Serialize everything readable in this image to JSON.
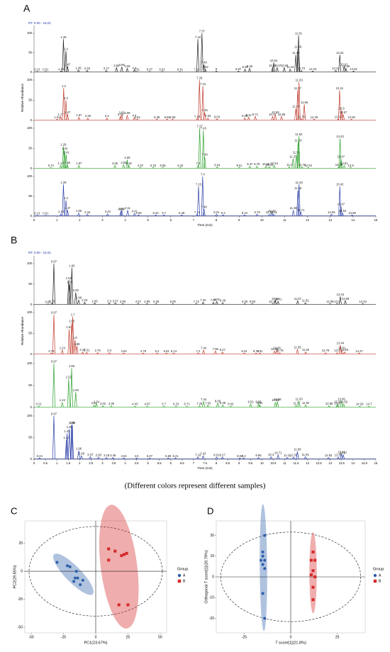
{
  "chart_data": [
    {
      "type": "chromatogram",
      "panel": "A",
      "rt_label": "RT: 0.00 - 15.01",
      "ylabel": "Relative Abundance",
      "xlabel": "Time (min)",
      "xlim": [
        0,
        15
      ],
      "xticks": [
        0,
        1,
        2,
        3,
        4,
        5,
        6,
        7,
        8,
        9,
        10,
        11,
        12,
        13,
        14,
        15
      ],
      "ylim": [
        0,
        100
      ],
      "yticks": [
        0,
        50,
        100
      ],
      "series": [
        {
          "color": "#222222",
          "x": [
            0.13,
            0.51,
            1.18,
            1.29,
            1.4,
            1.47,
            1.95,
            2.33,
            3.17,
            3.62,
            3.85,
            4.09,
            4.4,
            4.51,
            5.07,
            5.62,
            6.41,
            7.14,
            7.19,
            7.37,
            7.46,
            7.52,
            8.0,
            8.97,
            9.26,
            9.46,
            10.47,
            10.52,
            10.67,
            10.98,
            11.24,
            11.49,
            11.58,
            11.61,
            11.73,
            12.23,
            13.24,
            13.42,
            13.61,
            13.69,
            14.02
          ],
          "values": [
            2,
            2,
            3,
            85,
            55,
            15,
            6,
            5,
            5,
            12,
            14,
            10,
            6,
            2,
            2,
            2,
            2,
            2,
            85,
            100,
            20,
            8,
            3,
            3,
            8,
            10,
            12,
            25,
            12,
            12,
            8,
            45,
            60,
            95,
            5,
            3,
            5,
            45,
            15,
            10,
            3
          ]
        },
        {
          "color": "#c0392b",
          "x": [
            1.01,
            1.17,
            1.3,
            1.4,
            1.47,
            1.97,
            2.36,
            3.2,
            3.79,
            3.85,
            4.09,
            4.4,
            4.53,
            5.39,
            5.84,
            6.08,
            7.16,
            7.26,
            7.41,
            7.49,
            7.63,
            8.03,
            9.25,
            9.42,
            9.71,
            10.47,
            10.59,
            10.86,
            11.49,
            11.57,
            11.63,
            11.73,
            11.86,
            12.29,
            13.35,
            13.41,
            13.5,
            13.57,
            13.93
          ],
          "values": [
            3,
            10,
            80,
            50,
            15,
            8,
            6,
            6,
            10,
            14,
            13,
            7,
            3,
            3,
            3,
            3,
            5,
            100,
            85,
            20,
            6,
            4,
            6,
            8,
            10,
            10,
            15,
            10,
            30,
            75,
            95,
            4,
            40,
            3,
            4,
            75,
            25,
            15,
            3
          ]
        },
        {
          "color": "#2ca02c",
          "x": [
            0.74,
            1.17,
            1.29,
            1.34,
            1.41,
            1.46,
            1.97,
            3.55,
            3.93,
            4.09,
            4.16,
            4.67,
            5.23,
            5.65,
            6.42,
            7.2,
            7.27,
            7.43,
            7.49,
            8.04,
            9.01,
            9.47,
            9.78,
            10.18,
            10.33,
            10.54,
            11.2,
            11.37,
            11.51,
            11.59,
            11.62,
            11.76,
            12.03,
            13.38,
            13.43,
            13.47,
            13.61,
            13.9
          ],
          "values": [
            3,
            8,
            55,
            45,
            35,
            10,
            8,
            8,
            10,
            22,
            8,
            3,
            3,
            3,
            3,
            8,
            100,
            95,
            30,
            4,
            3,
            6,
            6,
            6,
            5,
            8,
            5,
            25,
            35,
            65,
            80,
            5,
            3,
            5,
            75,
            25,
            8,
            3
          ]
        },
        {
          "color": "#2b3fa8",
          "x": [
            0.13,
            0.51,
            1.18,
            1.29,
            1.4,
            1.47,
            1.96,
            2.34,
            3.23,
            3.81,
            3.85,
            4.11,
            4.41,
            4.59,
            5.34,
            5.7,
            6.48,
            7.16,
            7.22,
            7.4,
            7.46,
            8.01,
            8.3,
            9.24,
            9.79,
            10.33,
            10.44,
            10.51,
            11.38,
            11.58,
            11.63,
            11.71,
            13.05,
            13.42,
            13.47,
            13.54,
            13.96
          ],
          "values": [
            2,
            2,
            6,
            80,
            40,
            15,
            8,
            5,
            6,
            12,
            14,
            15,
            7,
            3,
            3,
            3,
            3,
            5,
            75,
            100,
            18,
            5,
            3,
            3,
            5,
            5,
            8,
            5,
            15,
            65,
            80,
            10,
            5,
            75,
            25,
            8,
            3
          ]
        }
      ]
    },
    {
      "type": "chromatogram",
      "panel": "B",
      "rt_label": "RT: 0.00 - 15.01",
      "ylabel": "Relative Abundance",
      "xlabel": "Time (min)",
      "xlim": [
        0,
        15
      ],
      "xticks": [
        0,
        0.5,
        1,
        1.5,
        2,
        2.5,
        3,
        3.5,
        4,
        4.5,
        5,
        5.5,
        6,
        6.5,
        7,
        7.5,
        8,
        8.5,
        9,
        9.5,
        10,
        10.5,
        11,
        11.5,
        12,
        12.5,
        13,
        13.5,
        14,
        14.5,
        15
      ],
      "ylim": [
        0,
        100
      ],
      "yticks": [
        0,
        50,
        100
      ],
      "series": [
        {
          "color": "#222222",
          "x": [
            0.61,
            0.79,
            0.87,
            1.52,
            1.57,
            1.66,
            1.83,
            1.96,
            2.22,
            2.66,
            3.3,
            3.57,
            3.89,
            4.57,
            4.96,
            5.36,
            6.09,
            7.12,
            7.42,
            7.87,
            8.02,
            8.28,
            9.25,
            9.58,
            10.47,
            10.59,
            10.71,
            11.57,
            11.91,
            12.99,
            13.3,
            13.44,
            13.66,
            14.43
          ],
          "values": [
            2,
            4,
            100,
            60,
            50,
            90,
            30,
            12,
            6,
            4,
            4,
            4,
            3,
            3,
            3,
            3,
            3,
            3,
            6,
            6,
            8,
            5,
            3,
            3,
            3,
            10,
            8,
            10,
            5,
            3,
            3,
            20,
            10,
            3
          ]
        },
        {
          "color": "#c0392b",
          "x": [
            0.76,
            0.87,
            1.24,
            1.54,
            1.65,
            1.7,
            1.8,
            1.88,
            2.13,
            2.31,
            2.79,
            3.3,
            3.94,
            4.79,
            5.4,
            5.81,
            6.13,
            7.2,
            7.44,
            7.96,
            8.27,
            9.22,
            9.74,
            9.91,
            10.55,
            10.66,
            10.78,
            11.56,
            11.92,
            12.79,
            13.3,
            13.44,
            13.51,
            13.63,
            14.27
          ],
          "values": [
            3,
            95,
            10,
            60,
            75,
            90,
            35,
            20,
            6,
            5,
            4,
            4,
            3,
            3,
            3,
            3,
            3,
            3,
            10,
            8,
            6,
            3,
            3,
            3,
            8,
            10,
            4,
            12,
            6,
            4,
            4,
            22,
            10,
            6,
            3
          ]
        },
        {
          "color": "#2ca02c",
          "x": [
            0.21,
            0.87,
            1.24,
            1.52,
            1.65,
            1.83,
            2.64,
            2.74,
            3.02,
            3.39,
            4.43,
            4.97,
            5.7,
            6.23,
            6.71,
            7.26,
            7.44,
            7.63,
            8.06,
            8.28,
            8.63,
            9.51,
            9.85,
            9.91,
            10.59,
            10.68,
            11.5,
            11.63,
            11.92,
            12.95,
            13.3,
            13.33,
            13.49,
            13.59,
            14.29,
            14.7
          ],
          "values": [
            3,
            100,
            12,
            65,
            90,
            35,
            6,
            8,
            4,
            4,
            3,
            3,
            3,
            3,
            3,
            4,
            14,
            5,
            10,
            6,
            3,
            8,
            8,
            6,
            12,
            14,
            5,
            15,
            6,
            4,
            5,
            8,
            15,
            8,
            3,
            3
          ]
        },
        {
          "color": "#2b3fa8",
          "x": [
            0.24,
            0.87,
            1.42,
            1.45,
            1.55,
            1.65,
            1.68,
            1.96,
            2.08,
            2.47,
            2.83,
            3.18,
            3.46,
            3.94,
            4.5,
            5.07,
            5.89,
            6.21,
            7.19,
            7.42,
            8.01,
            8.27,
            9.03,
            9.2,
            9.85,
            10.4,
            10.71,
            11.11,
            11.39,
            11.56,
            11.91,
            12.92,
            13.35,
            13.49,
            13.57
          ],
          "values": [
            3,
            100,
            45,
            60,
            70,
            80,
            80,
            20,
            8,
            6,
            5,
            4,
            4,
            3,
            3,
            3,
            3,
            3,
            5,
            8,
            5,
            5,
            3,
            3,
            4,
            6,
            10,
            4,
            5,
            18,
            6,
            4,
            5,
            12,
            10
          ]
        }
      ]
    },
    {
      "type": "scatter",
      "panel": "C",
      "xlabel": "PC1(23.67%)",
      "ylabel": "PC2(29.85%)",
      "legend_title": "Group",
      "xlim": [
        -55,
        55
      ],
      "xticks": [
        -50,
        -25,
        0,
        25,
        50
      ],
      "ylim": [
        -55,
        45
      ],
      "yticks": [
        -50,
        -25,
        0,
        25
      ],
      "series": [
        {
          "name": "A",
          "color": "#2e5fa8",
          "marker": "circle",
          "x": [
            -30,
            -22,
            -20,
            -15,
            -16,
            -14,
            -10,
            -17,
            -12
          ],
          "values": [
            8,
            5,
            4,
            0,
            -6,
            -6,
            -8,
            -9,
            -12
          ]
        },
        {
          "name": "B",
          "color": "#d62728",
          "marker": "square",
          "x": [
            10,
            15,
            20,
            22,
            24,
            10,
            18,
            25
          ],
          "values": [
            20,
            18,
            14,
            15,
            16,
            10,
            -30,
            -30
          ]
        }
      ]
    },
    {
      "type": "scatter",
      "panel": "D",
      "xlabel": "T score[1](21.8%)",
      "ylabel": "Orthogonal T score[1](20.79%)",
      "legend_title": "Group",
      "xlim": [
        -40,
        40
      ],
      "xticks": [
        -25,
        0,
        25
      ],
      "ylim": [
        -27,
        27
      ],
      "yticks": [
        -20,
        -10,
        0,
        10,
        20
      ],
      "series": [
        {
          "name": "A",
          "color": "#2e5fa8",
          "marker": "circle",
          "x": [
            -14,
            -15,
            -15,
            -14,
            -16,
            -15,
            -14,
            -15,
            -14
          ],
          "values": [
            20,
            12,
            10,
            8,
            8,
            6,
            4,
            -8,
            -20
          ]
        },
        {
          "name": "B",
          "color": "#d62728",
          "marker": "square",
          "x": [
            12,
            11,
            13,
            12,
            11,
            13,
            12,
            12
          ],
          "values": [
            12,
            8,
            8,
            3,
            1,
            0,
            -5,
            -11
          ]
        }
      ]
    }
  ],
  "caption": "(Different colors represent different samples)"
}
